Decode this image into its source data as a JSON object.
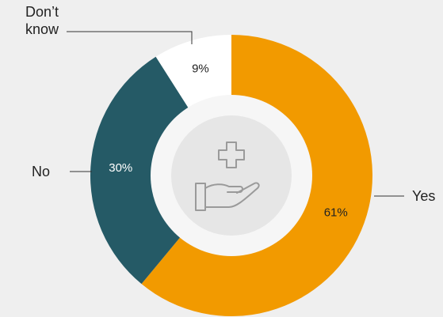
{
  "chart_data": {
    "type": "donut",
    "categories": [
      "Yes",
      "No",
      "Don’t know"
    ],
    "values": [
      61,
      30,
      9
    ],
    "value_labels": [
      "61%",
      "30%",
      "9%"
    ],
    "colors": [
      "#f29a00",
      "#255a66",
      "#ffffff"
    ]
  }
}
